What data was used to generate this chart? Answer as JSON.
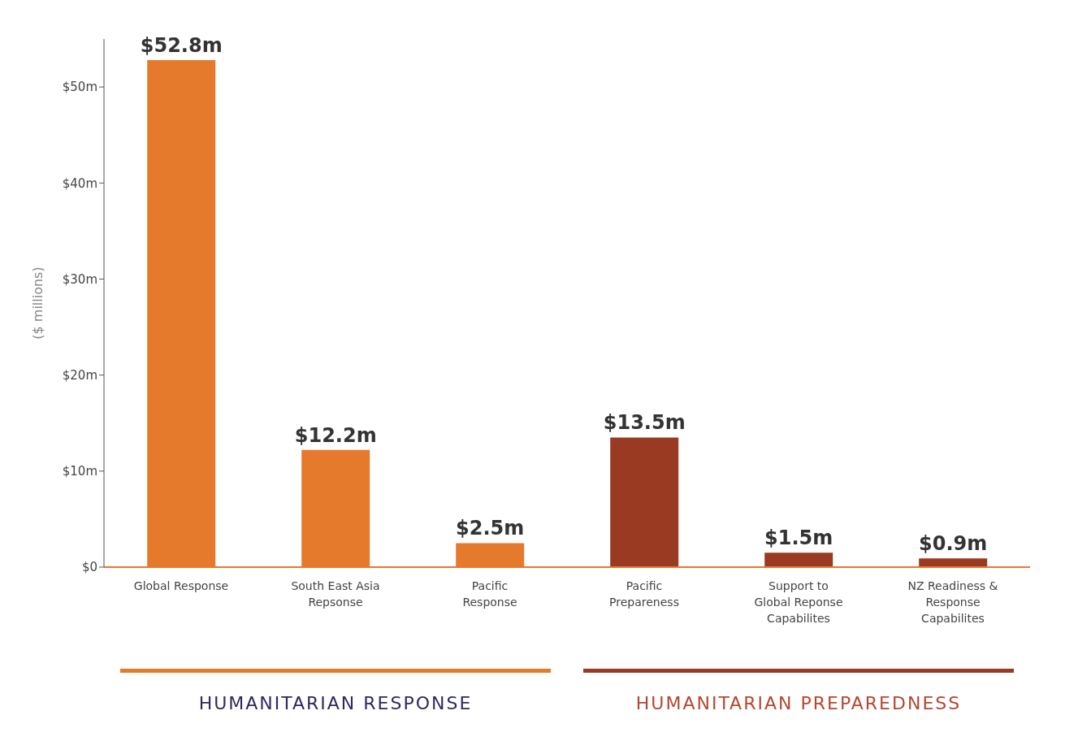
{
  "chart_data": {
    "type": "bar",
    "ylabel": "($ millions)",
    "categories": [
      "Global Response",
      "South East Asia Repsonse",
      "Pacific Response",
      "Pacific Prepareness",
      "Support to Global Reponse Capabilites",
      "NZ Readiness & Response Capabilites"
    ],
    "values": [
      52.8,
      12.2,
      2.5,
      13.5,
      1.5,
      0.9
    ],
    "colors": [
      "#e57a2c",
      "#e57a2c",
      "#e57a2c",
      "#9a3a22",
      "#9a3a22",
      "#9a3a22"
    ],
    "value_labels": [
      "$52.8m",
      "$12.2m",
      "$2.5m",
      "$13.5m",
      "$1.5m",
      "$0.9m"
    ],
    "ylim": [
      0,
      55
    ],
    "yticks": [
      {
        "value": 0,
        "label": "$0"
      },
      {
        "value": 10,
        "label": "$10m"
      },
      {
        "value": 20,
        "label": "$20m"
      },
      {
        "value": 30,
        "label": "$30m"
      },
      {
        "value": 40,
        "label": "$40m"
      },
      {
        "value": 50,
        "label": "$50m"
      }
    ],
    "annotations": [
      "HUMANITARIAN RESPONSE",
      "HUMANITARIAN PREPAREDNESS"
    ],
    "grid": false,
    "legend": false
  }
}
